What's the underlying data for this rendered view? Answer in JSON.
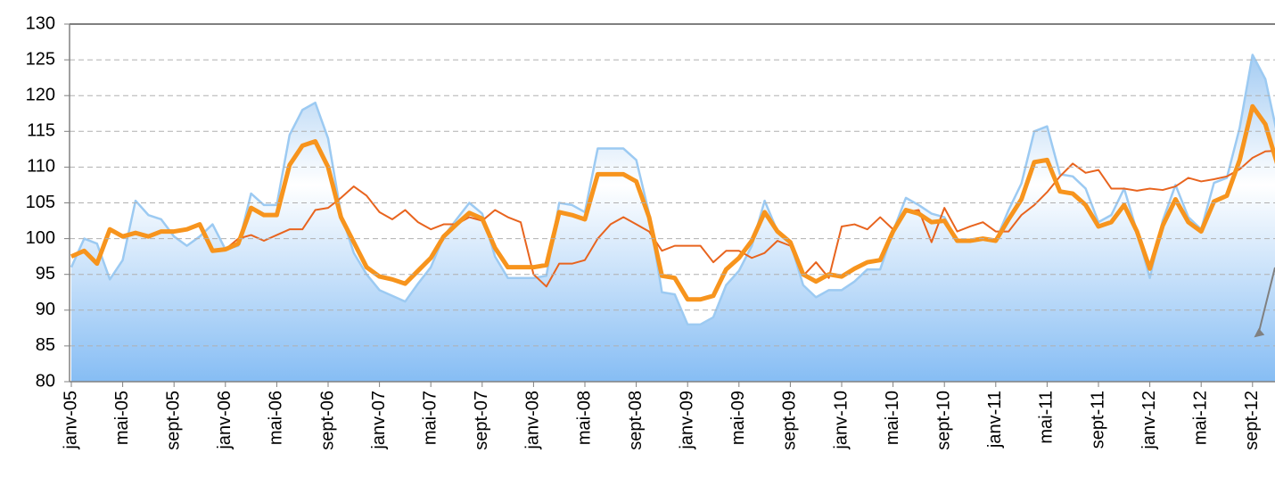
{
  "chart_data": {
    "type": "line",
    "categories": [
      "janv-05",
      null,
      null,
      null,
      "mai-05",
      null,
      null,
      null,
      "sept-05",
      null,
      null,
      null,
      "janv-06",
      null,
      null,
      null,
      "mai-06",
      null,
      null,
      null,
      "sept-06",
      null,
      null,
      null,
      "janv-07",
      null,
      null,
      null,
      "mai-07",
      null,
      null,
      null,
      "sept-07",
      null,
      null,
      null,
      "janv-08",
      null,
      null,
      null,
      "mai-08",
      null,
      null,
      null,
      "sept-08",
      null,
      null,
      null,
      "janv-09",
      null,
      null,
      null,
      "mai-09",
      null,
      null,
      null,
      "sept-09",
      null,
      null,
      null,
      "janv-10",
      null,
      null,
      null,
      "mai-10",
      null,
      null,
      null,
      "sept-10",
      null,
      null,
      null,
      "janv-11",
      null,
      null,
      null,
      "mai-11",
      null,
      null,
      null,
      "sept-11",
      null,
      null,
      null,
      "janv-12",
      null,
      null,
      null,
      "mai-12",
      null,
      null,
      null,
      "sept-12",
      null,
      null
    ],
    "series": [
      {
        "color": "#9ccaf2",
        "area": true,
        "width": 2.5,
        "values": [
          96,
          100,
          99.3,
          94.3,
          97,
          105.3,
          103.3,
          102.7,
          100.3,
          99,
          100.3,
          102,
          98.5,
          99,
          106.3,
          104.7,
          104.7,
          114.5,
          118,
          119,
          114,
          103.5,
          98,
          95,
          92.8,
          92,
          91.2,
          93.7,
          96,
          100.3,
          102.7,
          105,
          103.5,
          97.5,
          94.5,
          94.5,
          94.5,
          94.8,
          105,
          104.7,
          103.7,
          112.6,
          112.6,
          112.6,
          111,
          103.5,
          92.5,
          92.2,
          88,
          88,
          89,
          93.5,
          95.5,
          99,
          105.3,
          101,
          99.5,
          93.5,
          91.8,
          92.8,
          92.8,
          94,
          95.7,
          95.7,
          101,
          105.7,
          104.7,
          103.5,
          103,
          99.7,
          99.7,
          100,
          99.7,
          104,
          107.7,
          115,
          115.7,
          109,
          108.7,
          107,
          102.3,
          103.3,
          107,
          101,
          94.5,
          102.5,
          107.5,
          103,
          101.3,
          107.8,
          108.5,
          115.5,
          125.7,
          122.3,
          114
        ]
      },
      {
        "color": "#e8641e",
        "width": 2,
        "values": [
          97.5,
          98.3,
          96.5,
          101.3,
          100.5,
          100.8,
          100.3,
          101,
          101,
          101.3,
          102,
          98.5,
          98.5,
          100,
          100.5,
          99.7,
          100.5,
          101.3,
          101.3,
          104,
          104.3,
          105.7,
          107.3,
          106,
          103.7,
          102.7,
          104,
          102.3,
          101.3,
          102,
          102,
          103,
          102.5,
          104,
          103,
          102.3,
          95,
          93.3,
          96.5,
          96.5,
          97,
          100,
          102,
          103,
          102,
          101,
          98.3,
          99,
          99,
          99,
          96.7,
          98.3,
          98.3,
          97.3,
          98,
          99.7,
          99,
          94.8,
          96.7,
          94.5,
          101.7,
          102,
          101.3,
          103,
          101.3,
          103.7,
          104,
          99.5,
          104.3,
          101,
          101.7,
          102.3,
          101,
          101,
          103.3,
          104.7,
          106.5,
          108.7,
          110.5,
          109.2,
          109.6,
          107,
          107,
          106.7,
          107,
          106.8,
          107.3,
          108.5,
          108,
          108.3,
          108.7,
          109.7,
          111.3,
          112.2,
          112.3
        ]
      },
      {
        "color": "#f7941d",
        "width": 5,
        "values": [
          97.5,
          98.3,
          96.5,
          101.3,
          100.3,
          100.8,
          100.3,
          101,
          101,
          101.3,
          102,
          98.3,
          98.5,
          99.3,
          104.3,
          103.3,
          103.3,
          110.3,
          113,
          113.6,
          110,
          103,
          99.5,
          96,
          94.7,
          94.3,
          93.7,
          95.5,
          97.3,
          100.3,
          102,
          103.6,
          102.8,
          98.7,
          96,
          96,
          96,
          96.3,
          103.7,
          103.3,
          102.7,
          109,
          109,
          109,
          108,
          103,
          94.8,
          94.5,
          91.5,
          91.5,
          92,
          95.7,
          97.3,
          99.7,
          103.7,
          101,
          99.5,
          95,
          94,
          95,
          94.7,
          95.8,
          96.7,
          97,
          101,
          104,
          103.5,
          102.3,
          102.5,
          99.7,
          99.7,
          100,
          99.7,
          102.7,
          105.5,
          110.7,
          111,
          106.6,
          106.3,
          104.7,
          101.7,
          102.3,
          104.7,
          101,
          95.8,
          101.8,
          105.5,
          102.3,
          101,
          105.2,
          106,
          111,
          118.5,
          116,
          110
        ]
      }
    ],
    "ylim": [
      80,
      130
    ],
    "yticks": [
      80,
      85,
      90,
      95,
      100,
      105,
      110,
      115,
      120,
      125,
      130
    ],
    "grid": true
  }
}
